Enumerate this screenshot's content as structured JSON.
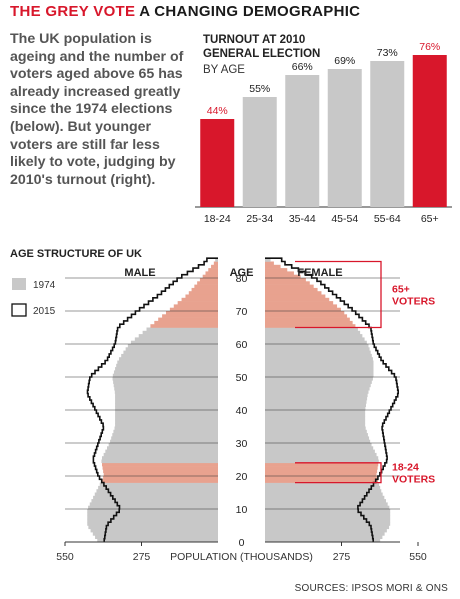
{
  "headline": {
    "highlight": "THE GREY VOTE",
    "rest": "A CHANGING DEMOGRAPHIC"
  },
  "intro": "The UK population is ageing and the number of voters aged above 65 has already increased greatly since the 1974 elections (below). But younger voters are still far less likely to vote, judging by 2010's turnout (right).",
  "sources": "SOURCES: IPSOS MORI & ONS",
  "colors": {
    "accent": "#d8172b",
    "bar_grey": "#c8c8c8",
    "overlap": "#e8a28f",
    "outline": "#111111"
  },
  "chart_data": [
    {
      "type": "bar",
      "title": "TURNOUT AT 2010 GENERAL ELECTION",
      "subtitle": "BY AGE",
      "categories": [
        "18-24",
        "25-34",
        "35-44",
        "45-54",
        "55-64",
        "65+"
      ],
      "values": [
        44,
        55,
        66,
        69,
        73,
        76
      ],
      "value_labels": [
        "44%",
        "55%",
        "66%",
        "69%",
        "73%",
        "76%"
      ],
      "highlighted": [
        "18-24",
        "65+"
      ],
      "ylim": [
        0,
        80
      ]
    },
    {
      "type": "area",
      "title": "AGE STRUCTURE OF UK",
      "xlabel": "POPULATION (THOUSANDS)",
      "ylabel": "AGE",
      "side_labels": {
        "left": "MALE",
        "right": "FEMALE"
      },
      "x_ticks": [
        "550",
        "275",
        "275",
        "550"
      ],
      "xlim": [
        0,
        550
      ],
      "y_ticks": [
        0,
        10,
        20,
        30,
        40,
        50,
        60,
        70,
        80
      ],
      "ylim": [
        0,
        86
      ],
      "legend": [
        "1974",
        "2015"
      ],
      "annotations": [
        {
          "label": "65+ VOTERS",
          "age_range": [
            65,
            85
          ]
        },
        {
          "label": "18-24 VOTERS",
          "age_range": [
            18,
            24
          ]
        }
      ],
      "series": [
        {
          "name": "1974",
          "ages": [
            0,
            5,
            10,
            15,
            20,
            25,
            30,
            35,
            40,
            45,
            50,
            55,
            60,
            65,
            70,
            75,
            80,
            85
          ],
          "male": [
            430,
            470,
            470,
            440,
            410,
            420,
            390,
            370,
            370,
            370,
            380,
            360,
            320,
            250,
            180,
            110,
            60,
            10
          ],
          "female": [
            410,
            450,
            450,
            420,
            400,
            410,
            380,
            360,
            360,
            370,
            390,
            390,
            370,
            330,
            280,
            210,
            140,
            20
          ]
        },
        {
          "name": "2015",
          "ages": [
            0,
            5,
            10,
            15,
            20,
            25,
            30,
            35,
            40,
            45,
            50,
            55,
            60,
            65,
            70,
            75,
            80,
            85
          ],
          "male": [
            410,
            400,
            350,
            390,
            430,
            450,
            430,
            410,
            440,
            470,
            460,
            400,
            370,
            360,
            290,
            210,
            140,
            40
          ],
          "female": [
            390,
            380,
            330,
            370,
            410,
            440,
            430,
            420,
            450,
            480,
            470,
            420,
            390,
            380,
            320,
            250,
            180,
            60
          ]
        }
      ]
    }
  ]
}
